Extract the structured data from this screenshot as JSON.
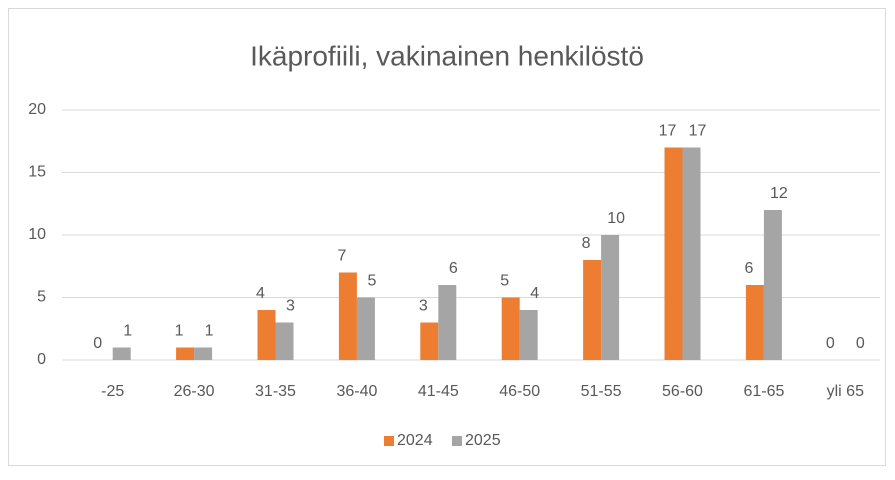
{
  "chart_data": {
    "type": "bar",
    "title": "Ikäprofiili, vakinainen henkilöstö",
    "categories": [
      "-25",
      "26-30",
      "31-35",
      "36-40",
      "41-45",
      "46-50",
      "51-55",
      "56-60",
      "61-65",
      "yli 65"
    ],
    "series": [
      {
        "name": "2024",
        "color": "#ed7d31",
        "values": [
          0,
          1,
          4,
          7,
          3,
          5,
          8,
          17,
          6,
          0
        ]
      },
      {
        "name": "2025",
        "color": "#a5a5a5",
        "values": [
          1,
          1,
          3,
          5,
          6,
          4,
          10,
          17,
          12,
          0
        ]
      }
    ],
    "ylim": [
      0,
      20
    ],
    "yticks": [
      0,
      5,
      10,
      15,
      20
    ],
    "grid": true,
    "legend": "bottom"
  }
}
